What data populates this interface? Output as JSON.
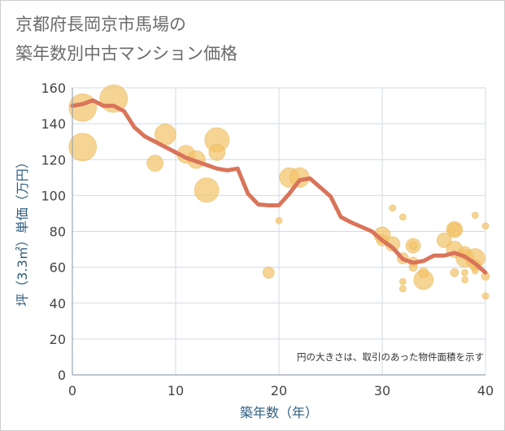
{
  "chart_data": {
    "type": "scatter",
    "title_line1": "京都府長岡京市馬場の",
    "title_line2": "築年数別中古マンション価格",
    "xlabel": "築年数（年）",
    "ylabel": "坪（3.3㎡）単価（万円）",
    "note": "円の大きさは、取引のあった物件面積を示す",
    "xlim": [
      0,
      40
    ],
    "ylim": [
      0,
      160
    ],
    "x_ticks": [
      0,
      10,
      20,
      30,
      40
    ],
    "y_ticks": [
      0,
      20,
      40,
      60,
      80,
      100,
      120,
      140,
      160
    ],
    "grid": true,
    "colors": {
      "bubble": "#f3c46a",
      "line": "#d9745a",
      "grid": "#d0dbe6",
      "axis": "#9aa5b1"
    },
    "series": [
      {
        "kind": "bubbles",
        "points": [
          {
            "x": 1,
            "y": 149,
            "r": 17
          },
          {
            "x": 1,
            "y": 127,
            "r": 17
          },
          {
            "x": 4,
            "y": 154,
            "r": 17
          },
          {
            "x": 8,
            "y": 118,
            "r": 10
          },
          {
            "x": 9,
            "y": 134,
            "r": 13
          },
          {
            "x": 11,
            "y": 123,
            "r": 11
          },
          {
            "x": 12,
            "y": 120,
            "r": 11
          },
          {
            "x": 13,
            "y": 103,
            "r": 15
          },
          {
            "x": 14,
            "y": 131,
            "r": 15
          },
          {
            "x": 14,
            "y": 124,
            "r": 10
          },
          {
            "x": 19,
            "y": 57,
            "r": 7
          },
          {
            "x": 20,
            "y": 86,
            "r": 4
          },
          {
            "x": 21,
            "y": 110,
            "r": 12
          },
          {
            "x": 22,
            "y": 110,
            "r": 12
          },
          {
            "x": 30,
            "y": 78,
            "r": 10
          },
          {
            "x": 30,
            "y": 75,
            "r": 7
          },
          {
            "x": 31,
            "y": 93,
            "r": 4
          },
          {
            "x": 31,
            "y": 73,
            "r": 9
          },
          {
            "x": 32,
            "y": 88,
            "r": 4
          },
          {
            "x": 32,
            "y": 65,
            "r": 7
          },
          {
            "x": 32,
            "y": 52,
            "r": 4
          },
          {
            "x": 32,
            "y": 48,
            "r": 4
          },
          {
            "x": 33,
            "y": 72,
            "r": 9
          },
          {
            "x": 33,
            "y": 72,
            "r": 5
          },
          {
            "x": 33,
            "y": 63,
            "r": 6
          },
          {
            "x": 33,
            "y": 60,
            "r": 5
          },
          {
            "x": 34,
            "y": 53,
            "r": 12
          },
          {
            "x": 34,
            "y": 57,
            "r": 6
          },
          {
            "x": 36,
            "y": 75,
            "r": 9
          },
          {
            "x": 37,
            "y": 81,
            "r": 10
          },
          {
            "x": 37,
            "y": 81,
            "r": 8
          },
          {
            "x": 37,
            "y": 70,
            "r": 10
          },
          {
            "x": 37,
            "y": 57,
            "r": 5
          },
          {
            "x": 38,
            "y": 68,
            "r": 8
          },
          {
            "x": 38,
            "y": 65,
            "r": 11
          },
          {
            "x": 38,
            "y": 57,
            "r": 4
          },
          {
            "x": 38,
            "y": 53,
            "r": 4
          },
          {
            "x": 39,
            "y": 89,
            "r": 4
          },
          {
            "x": 39,
            "y": 65,
            "r": 12
          },
          {
            "x": 39,
            "y": 61,
            "r": 7
          },
          {
            "x": 39,
            "y": 58,
            "r": 4
          },
          {
            "x": 40,
            "y": 83,
            "r": 4
          },
          {
            "x": 40,
            "y": 55,
            "r": 5
          },
          {
            "x": 40,
            "y": 44,
            "r": 4
          }
        ]
      },
      {
        "kind": "line",
        "x": [
          0,
          1,
          2,
          3,
          4,
          5,
          6,
          7,
          8,
          9,
          10,
          11,
          12,
          13,
          14,
          15,
          16,
          17,
          18,
          19,
          20,
          21,
          22,
          23,
          24,
          25,
          26,
          27,
          28,
          29,
          30,
          31,
          32,
          33,
          34,
          35,
          36,
          37,
          38,
          39,
          40
        ],
        "y": [
          150,
          151,
          153,
          150,
          150,
          147,
          138,
          133,
          130,
          127,
          124,
          121,
          119,
          117,
          115,
          114,
          115,
          101,
          95,
          94.5,
          94.5,
          101,
          108.5,
          109.5,
          104.5,
          99.5,
          88,
          85,
          82.5,
          80,
          75,
          71,
          64.5,
          62.5,
          63.5,
          66.5,
          66.5,
          68,
          66,
          62,
          57
        ]
      }
    ]
  }
}
